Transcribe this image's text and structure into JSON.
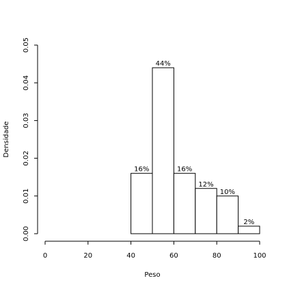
{
  "chart_data": {
    "type": "bar",
    "title": "",
    "xlabel": "Peso",
    "ylabel": "Densidade",
    "xlim": [
      0,
      100
    ],
    "ylim": [
      0,
      0.05
    ],
    "x_ticks": [
      "0",
      "20",
      "40",
      "60",
      "80",
      "100"
    ],
    "x_tick_values": [
      0,
      20,
      40,
      60,
      80,
      100
    ],
    "y_ticks": [
      "0.00",
      "0.01",
      "0.02",
      "0.03",
      "0.04",
      "0.05"
    ],
    "y_tick_values": [
      0,
      0.01,
      0.02,
      0.03,
      0.04,
      0.05
    ],
    "grid": false,
    "bin_edges": [
      40,
      50,
      60,
      70,
      80,
      90,
      100
    ],
    "values": [
      0.016,
      0.044,
      0.016,
      0.012,
      0.01,
      0.002
    ],
    "labels": [
      "16%",
      "44%",
      "16%",
      "12%",
      "10%",
      "2%"
    ]
  }
}
